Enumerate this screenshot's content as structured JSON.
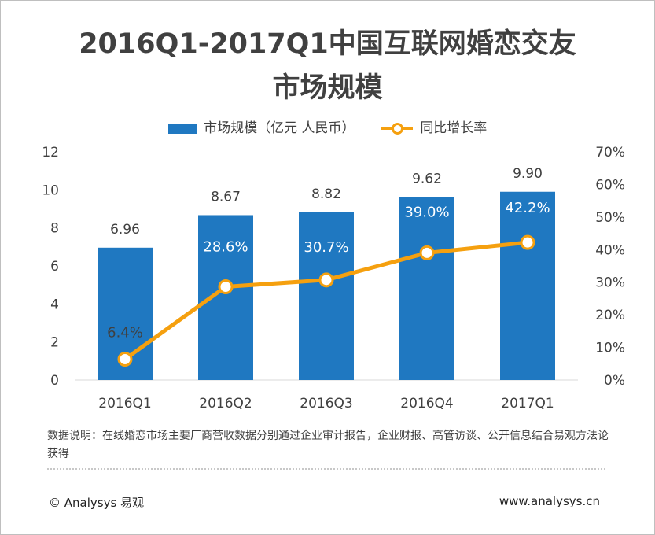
{
  "title_line1": "2016Q1-2017Q1中国互联网婚恋交友",
  "title_line2": "市场规模",
  "legend": {
    "bar": "市场规模（亿元 人民币）",
    "line": "同比增长率"
  },
  "note": "数据说明：在线婚恋市场主要厂商营收数据分别通过企业审计报告，企业财报、高管访谈、公开信息结合易观方法论获得",
  "copyright": "© Analysys 易观",
  "site": "www.analysys.cn",
  "chart_data": {
    "type": "bar",
    "categories": [
      "2016Q1",
      "2016Q2",
      "2016Q3",
      "2016Q4",
      "2017Q1"
    ],
    "series": [
      {
        "name": "市场规模（亿元 人民币）",
        "type": "bar",
        "values": [
          6.96,
          8.67,
          8.82,
          9.62,
          9.9
        ],
        "labels": [
          "6.96",
          "8.67",
          "8.82",
          "9.62",
          "9.90"
        ],
        "axis": "left"
      },
      {
        "name": "同比增长率",
        "type": "line",
        "values": [
          6.4,
          28.6,
          30.7,
          39.0,
          42.2
        ],
        "labels": [
          "6.4%",
          "28.6%",
          "30.7%",
          "39.0%",
          "42.2%"
        ],
        "axis": "right"
      }
    ],
    "y_left": {
      "ylim": [
        0,
        12
      ],
      "ticks": [
        "0",
        "2",
        "4",
        "6",
        "8",
        "10",
        "12"
      ]
    },
    "y_right": {
      "ylim": [
        0,
        70
      ],
      "ticks": [
        "0%",
        "10%",
        "20%",
        "30%",
        "40%",
        "50%",
        "60%",
        "70%"
      ]
    },
    "grid": false,
    "legend_position": "top",
    "colors": {
      "bar": "#1f78c1",
      "line": "#f5a00f",
      "marker_fill": "#ffffff"
    }
  }
}
